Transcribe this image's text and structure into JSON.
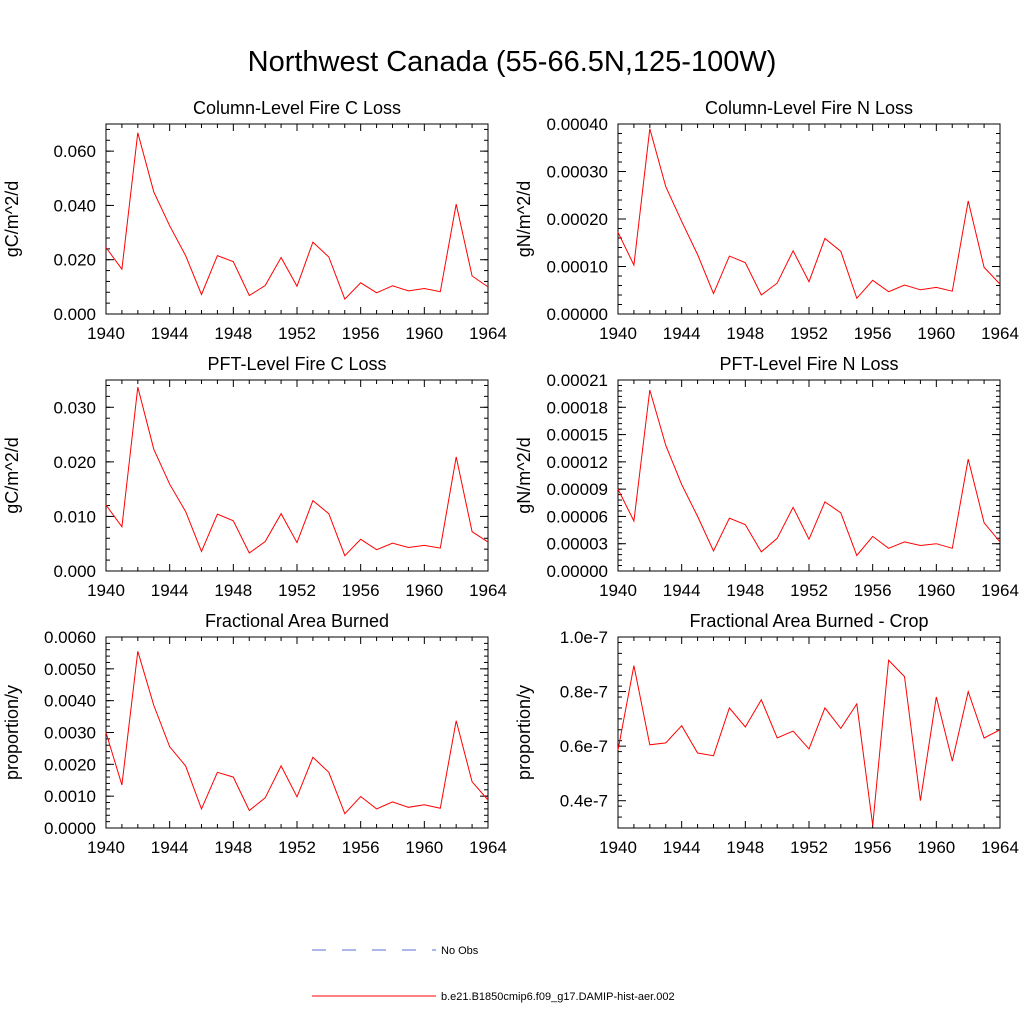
{
  "title": "Northwest Canada (55-66.5N,125-100W)",
  "chart_data": [
    {
      "type": "line",
      "title": "Column-Level Fire C Loss",
      "ylabel": "gC/m^2/d",
      "xlim": [
        1940,
        1964
      ],
      "ylim": [
        0,
        0.07
      ],
      "xticks": [
        1940,
        1944,
        1948,
        1952,
        1956,
        1960,
        1964
      ],
      "yticks": [
        0.0,
        0.02,
        0.04,
        0.06
      ],
      "ytick_labels": [
        "0.000",
        "0.020",
        "0.040",
        "0.060"
      ],
      "series": [
        {
          "name": "b.e21.B1850cmip6.f09_g17.DAMIP-hist-aer.002",
          "color": "#ff0000",
          "x": [
            1940,
            1941,
            1942,
            1943,
            1944,
            1945,
            1946,
            1947,
            1948,
            1949,
            1950,
            1951,
            1952,
            1953,
            1954,
            1955,
            1956,
            1957,
            1958,
            1959,
            1960,
            1961,
            1962,
            1963,
            1964
          ],
          "y": [
            0.0245,
            0.0165,
            0.0668,
            0.045,
            0.0325,
            0.0215,
            0.0072,
            0.0215,
            0.0193,
            0.0068,
            0.0105,
            0.0208,
            0.0102,
            0.0265,
            0.021,
            0.0055,
            0.0115,
            0.0078,
            0.0104,
            0.0085,
            0.0094,
            0.0082,
            0.0405,
            0.014,
            0.01
          ]
        }
      ]
    },
    {
      "type": "line",
      "title": "Column-Level Fire N Loss",
      "ylabel": "gN/m^2/d",
      "xlim": [
        1940,
        1964
      ],
      "ylim": [
        0,
        0.0004
      ],
      "xticks": [
        1940,
        1944,
        1948,
        1952,
        1956,
        1960,
        1964
      ],
      "yticks": [
        0.0,
        0.0001,
        0.0002,
        0.0003,
        0.0004
      ],
      "ytick_labels": [
        "0.00000",
        "0.00010",
        "0.00020",
        "0.00030",
        "0.00040"
      ],
      "series": [
        {
          "name": "b.e21.B1850cmip6.f09_g17.DAMIP-hist-aer.002",
          "color": "#ff0000",
          "x": [
            1940,
            1941,
            1942,
            1943,
            1944,
            1945,
            1946,
            1947,
            1948,
            1949,
            1950,
            1951,
            1952,
            1953,
            1954,
            1955,
            1956,
            1957,
            1958,
            1959,
            1960,
            1961,
            1962,
            1963,
            1964
          ],
          "y": [
            0.000172,
            0.000103,
            0.00039,
            0.000268,
            0.000195,
            0.000125,
            4.3e-05,
            0.000122,
            0.000108,
            4e-05,
            6.5e-05,
            0.000133,
            6.8e-05,
            0.000159,
            0.000132,
            3.3e-05,
            7.1e-05,
            4.7e-05,
            6.1e-05,
            5.1e-05,
            5.6e-05,
            4.8e-05,
            0.000238,
            9.8e-05,
            6.3e-05
          ]
        }
      ]
    },
    {
      "type": "line",
      "title": "PFT-Level Fire C Loss",
      "ylabel": "gC/m^2/d",
      "xlim": [
        1940,
        1964
      ],
      "ylim": [
        0,
        0.035
      ],
      "xticks": [
        1940,
        1944,
        1948,
        1952,
        1956,
        1960,
        1964
      ],
      "yticks": [
        0.0,
        0.01,
        0.02,
        0.03
      ],
      "ytick_labels": [
        "0.000",
        "0.010",
        "0.020",
        "0.030"
      ],
      "series": [
        {
          "name": "b.e21.B1850cmip6.f09_g17.DAMIP-hist-aer.002",
          "color": "#ff0000",
          "x": [
            1940,
            1941,
            1942,
            1943,
            1944,
            1945,
            1946,
            1947,
            1948,
            1949,
            1950,
            1951,
            1952,
            1953,
            1954,
            1955,
            1956,
            1957,
            1958,
            1959,
            1960,
            1961,
            1962,
            1963,
            1964
          ],
          "y": [
            0.0121,
            0.0081,
            0.0337,
            0.0223,
            0.0159,
            0.0109,
            0.0036,
            0.0104,
            0.0092,
            0.0033,
            0.0054,
            0.0105,
            0.0052,
            0.0129,
            0.0105,
            0.0028,
            0.0058,
            0.0039,
            0.0051,
            0.0043,
            0.0047,
            0.0042,
            0.0209,
            0.0072,
            0.0053
          ]
        }
      ]
    },
    {
      "type": "line",
      "title": "PFT-Level Fire N Loss",
      "ylabel": "gN/m^2/d",
      "xlim": [
        1940,
        1964
      ],
      "ylim": [
        0,
        0.00021
      ],
      "xticks": [
        1940,
        1944,
        1948,
        1952,
        1956,
        1960,
        1964
      ],
      "yticks": [
        0.0,
        3e-05,
        6e-05,
        9e-05,
        0.00012,
        0.00015,
        0.00018,
        0.00021
      ],
      "ytick_labels": [
        "0.00000",
        "0.00003",
        "0.00006",
        "0.00009",
        "0.00012",
        "0.00015",
        "0.00018",
        "0.00021"
      ],
      "series": [
        {
          "name": "b.e21.B1850cmip6.f09_g17.DAMIP-hist-aer.002",
          "color": "#ff0000",
          "x": [
            1940,
            1941,
            1942,
            1943,
            1944,
            1945,
            1946,
            1947,
            1948,
            1949,
            1950,
            1951,
            1952,
            1953,
            1954,
            1955,
            1956,
            1957,
            1958,
            1959,
            1960,
            1961,
            1962,
            1963,
            1964
          ],
          "y": [
            9e-05,
            5.5e-05,
            0.000199,
            0.000138,
            9.5e-05,
            6e-05,
            2.2e-05,
            5.8e-05,
            5.1e-05,
            2.1e-05,
            3.6e-05,
            7e-05,
            3.5e-05,
            7.6e-05,
            6.4e-05,
            1.7e-05,
            3.8e-05,
            2.5e-05,
            3.2e-05,
            2.8e-05,
            3e-05,
            2.5e-05,
            0.000123,
            5.3e-05,
            3.2e-05
          ]
        }
      ]
    },
    {
      "type": "line",
      "title": "Fractional Area Burned",
      "ylabel": "proportion/y",
      "xlim": [
        1940,
        1964
      ],
      "ylim": [
        0,
        0.006
      ],
      "xticks": [
        1940,
        1944,
        1948,
        1952,
        1956,
        1960,
        1964
      ],
      "yticks": [
        0.0,
        0.001,
        0.002,
        0.003,
        0.004,
        0.005,
        0.006
      ],
      "ytick_labels": [
        "0.0000",
        "0.0010",
        "0.0020",
        "0.0030",
        "0.0040",
        "0.0050",
        "0.0060"
      ],
      "series": [
        {
          "name": "b.e21.B1850cmip6.f09_g17.DAMIP-hist-aer.002",
          "color": "#ff0000",
          "x": [
            1940,
            1941,
            1942,
            1943,
            1944,
            1945,
            1946,
            1947,
            1948,
            1949,
            1950,
            1951,
            1952,
            1953,
            1954,
            1955,
            1956,
            1957,
            1958,
            1959,
            1960,
            1961,
            1962,
            1963,
            1964
          ],
          "y": [
            0.003,
            0.00135,
            0.00555,
            0.00385,
            0.00255,
            0.00195,
            0.0006,
            0.00175,
            0.0016,
            0.00055,
            0.00095,
            0.00195,
            0.00098,
            0.00222,
            0.00175,
            0.00045,
            0.00099,
            0.0006,
            0.00082,
            0.00065,
            0.00073,
            0.00062,
            0.00337,
            0.00145,
            0.00088
          ]
        }
      ]
    },
    {
      "type": "line",
      "title": "Fractional Area Burned - Crop",
      "ylabel": "proportion/y",
      "xlim": [
        1940,
        1964
      ],
      "ylim": [
        3e-08,
        1e-07
      ],
      "xticks": [
        1940,
        1944,
        1948,
        1952,
        1956,
        1960,
        1964
      ],
      "yticks": [
        4e-08,
        6e-08,
        8e-08,
        1e-07
      ],
      "ytick_labels": [
        "0.4e-7",
        "0.6e-7",
        "0.8e-7",
        "1.0e-7"
      ],
      "series": [
        {
          "name": "b.e21.B1850cmip6.f09_g17.DAMIP-hist-aer.002",
          "color": "#ff0000",
          "x": [
            1940,
            1941,
            1942,
            1943,
            1944,
            1945,
            1946,
            1947,
            1948,
            1949,
            1950,
            1951,
            1952,
            1953,
            1954,
            1955,
            1956,
            1957,
            1958,
            1959,
            1960,
            1961,
            1962,
            1963,
            1964
          ],
          "y": [
            5.85e-08,
            8.95e-08,
            6.05e-08,
            6.12e-08,
            6.75e-08,
            5.75e-08,
            5.65e-08,
            7.4e-08,
            6.7e-08,
            7.7e-08,
            6.3e-08,
            6.55e-08,
            5.9e-08,
            7.4e-08,
            6.65e-08,
            7.55e-08,
            3.1e-08,
            9.15e-08,
            8.55e-08,
            4e-08,
            7.8e-08,
            5.45e-08,
            8e-08,
            6.3e-08,
            6.6e-08
          ]
        }
      ]
    }
  ],
  "legend": {
    "placement": "bottom-center",
    "entries": [
      {
        "label": "No Obs",
        "color": "#5b6fd6",
        "style": "dashed"
      },
      {
        "label": "b.e21.B1850cmip6.f09_g17.DAMIP-hist-aer.002",
        "color": "#ff0000",
        "style": "solid"
      }
    ]
  }
}
